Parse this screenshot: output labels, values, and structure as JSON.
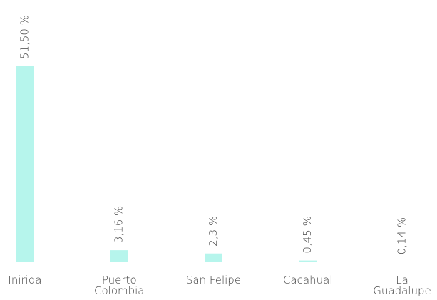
{
  "chart_data": {
    "type": "bar",
    "categories": [
      "Inirida",
      "Puerto Colombia",
      "San Felipe",
      "Cacahual",
      "La Guadalupe"
    ],
    "values": [
      51.5,
      3.16,
      2.3,
      0.45,
      0.14
    ],
    "value_labels": [
      "51,50 %",
      "3,16 %",
      "2,3 %",
      "0,45 %",
      "0,14 %"
    ],
    "color": "#b6f5ec"
  }
}
